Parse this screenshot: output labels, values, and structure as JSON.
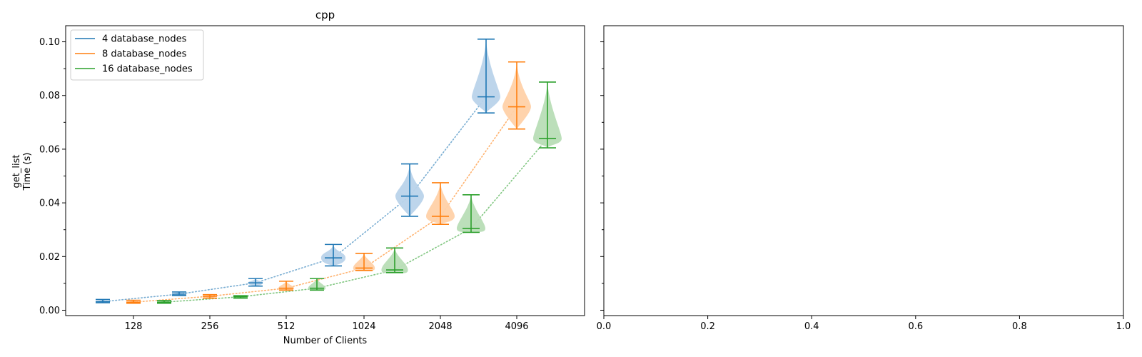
{
  "chart_data": [
    {
      "type": "violin",
      "title": "cpp",
      "xlabel": "Number of Clients",
      "ylabel_lines": [
        "get_list",
        "Time (s)"
      ],
      "categories": [
        "128",
        "256",
        "512",
        "1024",
        "2048",
        "4096"
      ],
      "ylim": [
        -0.002,
        0.106
      ],
      "yticks": [
        0.0,
        0.02,
        0.04,
        0.06,
        0.08,
        0.1
      ],
      "ytick_labels": [
        "0.00",
        "0.02",
        "0.04",
        "0.06",
        "0.08",
        "0.10"
      ],
      "minor_yticks": [
        0.01,
        0.03,
        0.05,
        0.07,
        0.09
      ],
      "grid": false,
      "legend_position": "top-left",
      "series": [
        {
          "name": "4 database_nodes",
          "color": "#1f77b4",
          "fill": "#b9d3ea",
          "min": [
            0.0028,
            0.0055,
            0.009,
            0.0165,
            0.035,
            0.0735
          ],
          "median": [
            0.0032,
            0.006,
            0.0102,
            0.0195,
            0.0425,
            0.0795
          ],
          "max": [
            0.004,
            0.0068,
            0.0118,
            0.0245,
            0.0545,
            0.101
          ]
        },
        {
          "name": "8 database_nodes",
          "color": "#ff7f0e",
          "fill": "#ffd1a8",
          "min": [
            0.0026,
            0.0045,
            0.0075,
            0.0148,
            0.032,
            0.0675
          ],
          "median": [
            0.003,
            0.0052,
            0.0082,
            0.0157,
            0.035,
            0.0758
          ],
          "max": [
            0.0037,
            0.0058,
            0.0108,
            0.0212,
            0.0475,
            0.0925
          ]
        },
        {
          "name": "16 database_nodes",
          "color": "#2ca02c",
          "fill": "#b8ddb6",
          "min": [
            0.0026,
            0.0045,
            0.0075,
            0.014,
            0.029,
            0.0605
          ],
          "median": [
            0.003,
            0.005,
            0.0082,
            0.015,
            0.0305,
            0.064
          ],
          "max": [
            0.0036,
            0.0054,
            0.0118,
            0.0232,
            0.043,
            0.085
          ]
        }
      ]
    },
    {
      "type": "empty",
      "xlim": [
        0.0,
        1.0
      ],
      "xticks": [
        0.0,
        0.2,
        0.4,
        0.6,
        0.8,
        1.0
      ],
      "xtick_labels": [
        "0.0",
        "0.2",
        "0.4",
        "0.6",
        "0.8",
        "1.0"
      ],
      "sharey": true
    }
  ]
}
